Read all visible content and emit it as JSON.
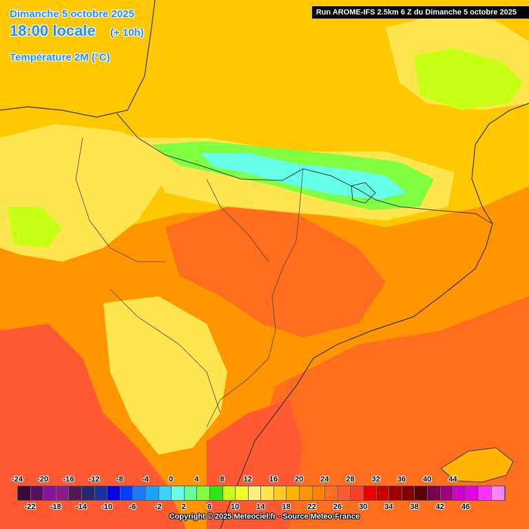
{
  "header": {
    "date_line": "Dimanche 5 octobre 2025",
    "time_line": "18:00 locale",
    "offset": "(+ 10h)",
    "variable": "Température 2M (°C)",
    "run": "Run AROME-IFS 2.5km 6 Z du Dimanche 5 octobre 2025"
  },
  "legend": {
    "top_labels": [
      "-24",
      "-20",
      "-16",
      "-12",
      "-8",
      "-4",
      "0",
      "4",
      "8",
      "12",
      "16",
      "20",
      "24",
      "28",
      "32",
      "36",
      "40",
      "44"
    ],
    "bottom_labels": [
      "-22",
      "-18",
      "-14",
      "-10",
      "-6",
      "-2",
      "2",
      "6",
      "10",
      "14",
      "18",
      "22",
      "26",
      "30",
      "34",
      "38",
      "42",
      "46"
    ],
    "colors": [
      "#3a0a3a",
      "#5a1060",
      "#8a10a0",
      "#8a1c8a",
      "#501a50",
      "#282870",
      "#1830a0",
      "#0000e0",
      "#0040ff",
      "#1e78ff",
      "#1ea0ff",
      "#3cd2ff",
      "#64ffe6",
      "#64ff96",
      "#80ff40",
      "#32e614",
      "#c8ff14",
      "#f0ff28",
      "#fff080",
      "#ffe650",
      "#ffc828",
      "#ffb400",
      "#ff9600",
      "#ff8200",
      "#ff6e1e",
      "#ff5a32",
      "#ff3c28",
      "#e60000",
      "#c80000",
      "#a00000",
      "#820000",
      "#5a0000",
      "#780050",
      "#a00080",
      "#c800c8",
      "#e600e6",
      "#ff32ff",
      "#ff82ff"
    ]
  },
  "copyright": "Copyright © 2025 Meteociel.fr - Source Meteo-France"
}
